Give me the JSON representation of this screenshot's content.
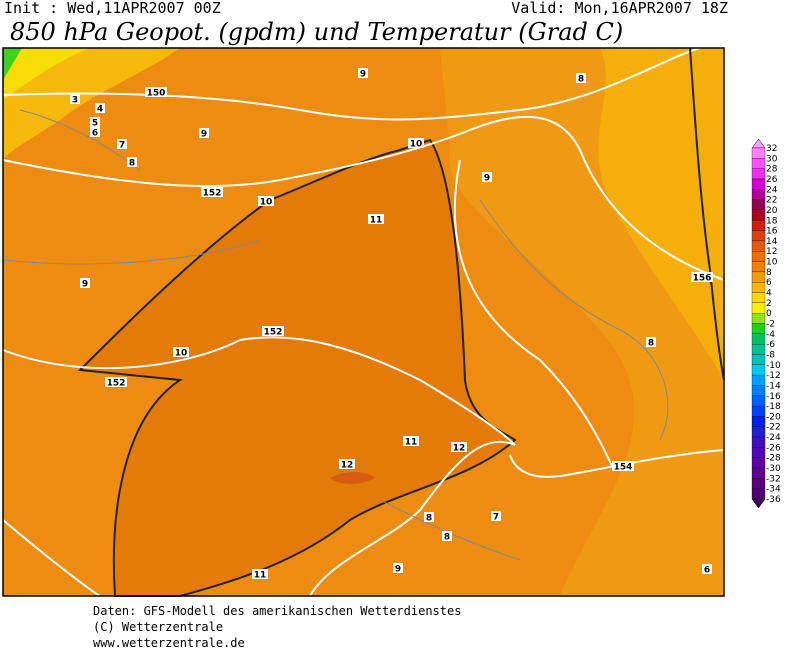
{
  "header": {
    "init": "Init : Wed,11APR2007 00Z",
    "valid": "Valid: Mon,16APR2007 18Z",
    "title": "850 hPa Geopot. (gpdm) und Temperatur (Grad C)"
  },
  "map": {
    "labels": [
      "3",
      "4",
      "5",
      "6",
      "7",
      "8",
      "150",
      "9",
      "8",
      "9",
      "10",
      "9",
      "152",
      "10",
      "11",
      "156",
      "9",
      "152",
      "10",
      "152",
      "8",
      "11",
      "12",
      "154",
      "12",
      "8",
      "7",
      "8",
      "9",
      "11",
      "6"
    ]
  },
  "colorbar": {
    "labels": [
      "32",
      "30",
      "28",
      "26",
      "24",
      "22",
      "20",
      "18",
      "16",
      "14",
      "12",
      "10",
      "8",
      "6",
      "4",
      "2",
      "0",
      "-2",
      "-4",
      "-6",
      "-8",
      "-10",
      "-12",
      "-14",
      "-16",
      "-18",
      "-20",
      "-22",
      "-24",
      "-26",
      "-28",
      "-30",
      "-32",
      "-34",
      "-36"
    ]
  },
  "footer": {
    "lines": [
      "Daten: GFS-Modell des amerikanischen Wetterdienstes",
      "(C) Wetterzentrale",
      "www.wetterzentrale.de"
    ]
  }
}
